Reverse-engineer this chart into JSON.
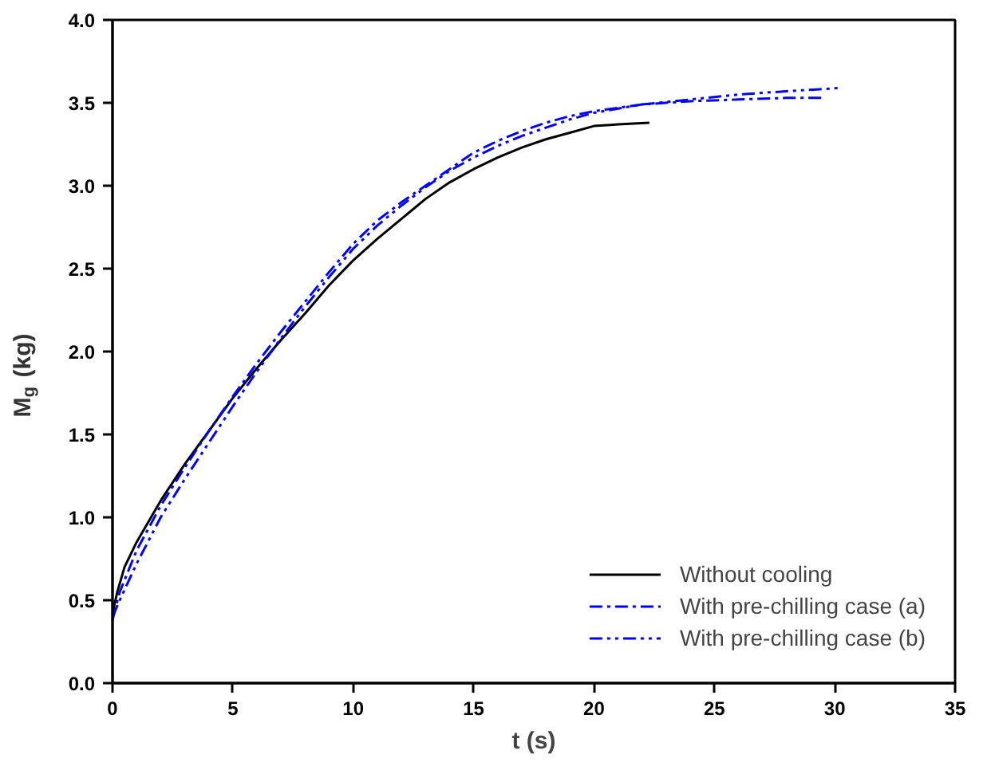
{
  "chart_data": {
    "type": "line",
    "xlabel": "t (s)",
    "ylabel": "M$_{g}$ (kg)",
    "xlim": [
      0,
      35
    ],
    "ylim": [
      0,
      4
    ],
    "xticks": [
      0,
      5,
      10,
      15,
      20,
      25,
      30,
      35
    ],
    "yticks": [
      {
        "value": 0,
        "label": "0.0"
      },
      {
        "value": 0.5,
        "label": "0.5"
      },
      {
        "value": 1,
        "label": "1.0"
      },
      {
        "value": 1.5,
        "label": "1.5"
      },
      {
        "value": 2,
        "label": "2.0"
      },
      {
        "value": 2.5,
        "label": "2.5"
      },
      {
        "value": 3,
        "label": "3.0"
      },
      {
        "value": 3.5,
        "label": "3.5"
      },
      {
        "value": 4,
        "label": "4.0"
      }
    ],
    "grid": false,
    "legend": "bottom right",
    "marker": "none",
    "series": [
      {
        "name": "Without cooling",
        "color": "#000000",
        "line_style": "solid",
        "x": [
          0,
          0.2,
          0.5,
          1,
          2,
          3,
          4,
          5,
          6,
          7,
          8,
          9,
          10,
          11,
          12,
          13,
          14,
          15,
          16,
          17,
          18,
          19,
          20,
          21,
          22.3
        ],
        "values": [
          0.42,
          0.55,
          0.7,
          0.85,
          1.1,
          1.32,
          1.52,
          1.72,
          1.9,
          2.07,
          2.23,
          2.4,
          2.55,
          2.68,
          2.8,
          2.92,
          3.02,
          3.1,
          3.17,
          3.23,
          3.28,
          3.32,
          3.36,
          3.37,
          3.38
        ]
      },
      {
        "name": "With pre-chilling case (a)",
        "color": "#0000ff",
        "line_style": "dashdot",
        "x": [
          0,
          0.3,
          1,
          2,
          3,
          4,
          5,
          6,
          7,
          8,
          9,
          10,
          11,
          12,
          13,
          14,
          15,
          16,
          17,
          18,
          19,
          20,
          22,
          24,
          26,
          28,
          29.5
        ],
        "values": [
          0.38,
          0.55,
          0.8,
          1.07,
          1.3,
          1.52,
          1.73,
          1.93,
          2.12,
          2.3,
          2.48,
          2.65,
          2.79,
          2.9,
          3.0,
          3.1,
          3.2,
          3.27,
          3.33,
          3.38,
          3.42,
          3.45,
          3.49,
          3.51,
          3.52,
          3.53,
          3.53
        ]
      },
      {
        "name": "With pre-chilling case (b)",
        "color": "#0000ff",
        "line_style": "dashdotdot",
        "x": [
          0,
          0.3,
          1,
          2,
          3,
          4,
          5,
          6,
          7,
          8,
          9,
          10,
          11,
          12,
          13,
          14,
          15,
          16,
          17,
          18,
          19,
          20,
          22,
          24,
          26,
          28,
          30.3
        ],
        "values": [
          0.4,
          0.5,
          0.72,
          1.0,
          1.23,
          1.45,
          1.67,
          1.88,
          2.08,
          2.27,
          2.45,
          2.62,
          2.76,
          2.88,
          2.99,
          3.09,
          3.17,
          3.24,
          3.3,
          3.35,
          3.4,
          3.44,
          3.49,
          3.52,
          3.55,
          3.57,
          3.59
        ]
      }
    ]
  }
}
